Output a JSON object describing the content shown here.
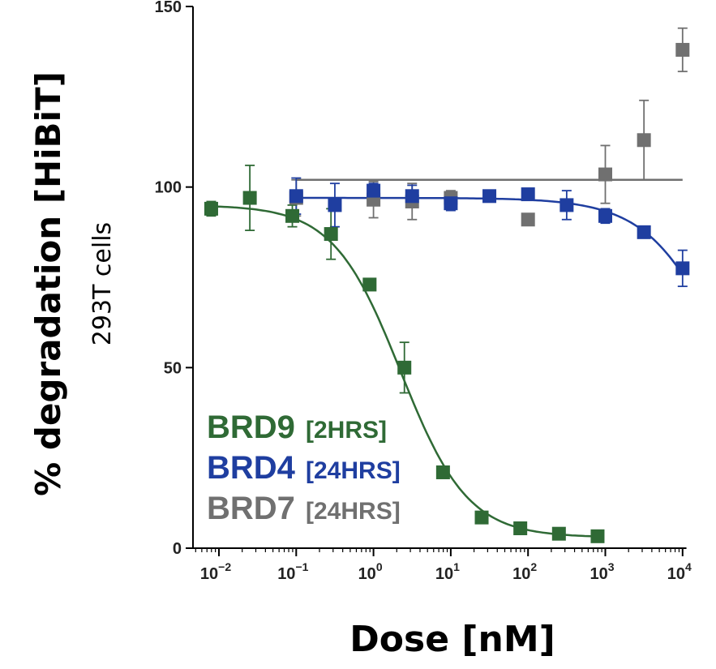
{
  "chart_data": {
    "type": "scatter",
    "xscale": "log",
    "xlabel": "Dose [nM]",
    "ylabel": "% degradation [HiBiT]",
    "ylabel_sub": "293T cells",
    "ylim": [
      0,
      150
    ],
    "xlim_log10": [
      -2.35,
      4.05
    ],
    "yticks": [
      "0",
      "50",
      "100",
      "150"
    ],
    "xticks": [
      {
        "base": "10",
        "exp": "−2",
        "log": -2
      },
      {
        "base": "10",
        "exp": "−1",
        "log": -1
      },
      {
        "base": "10",
        "exp": "0",
        "log": 0
      },
      {
        "base": "10",
        "exp": "1",
        "log": 1
      },
      {
        "base": "10",
        "exp": "2",
        "log": 2
      },
      {
        "base": "10",
        "exp": "3",
        "log": 3
      },
      {
        "base": "10",
        "exp": "4",
        "log": 4
      }
    ],
    "series": [
      {
        "name": "BRD9",
        "time": "[2HRS]",
        "color": "#2f6a35",
        "fit": {
          "type": "sigmoid",
          "top": 95,
          "bottom": 3,
          "logIC50": 0.35,
          "hill": 1.0,
          "log_range": [
            -2.1,
            2.9
          ]
        },
        "points": [
          {
            "log": -2.1,
            "y": 94,
            "err": 2
          },
          {
            "log": -1.6,
            "y": 97,
            "err": 9
          },
          {
            "log": -1.05,
            "y": 92,
            "err": 3
          },
          {
            "log": -0.55,
            "y": 87,
            "err": 7
          },
          {
            "log": -0.05,
            "y": 73,
            "err": 0
          },
          {
            "log": 0.4,
            "y": 50,
            "err": 7
          },
          {
            "log": 0.9,
            "y": 21,
            "err": 0
          },
          {
            "log": 1.4,
            "y": 8.5,
            "err": 0
          },
          {
            "log": 1.9,
            "y": 5.5,
            "err": 0
          },
          {
            "log": 2.4,
            "y": 4,
            "err": 0
          },
          {
            "log": 2.9,
            "y": 3.3,
            "err": 0
          }
        ]
      },
      {
        "name": "BRD4",
        "time": "[24HRS]",
        "color": "#1f3ea0",
        "fit": {
          "type": "sigmoid",
          "top": 97,
          "bottom": 0,
          "logIC50": 4.65,
          "hill": 0.85,
          "log_range": [
            -1.0,
            4.0
          ]
        },
        "points": [
          {
            "log": -1.0,
            "y": 97.5,
            "err": 5
          },
          {
            "log": -0.5,
            "y": 95,
            "err": 6
          },
          {
            "log": 0.0,
            "y": 99,
            "err": 2
          },
          {
            "log": 0.5,
            "y": 97.5,
            "err": 3
          },
          {
            "log": 1.0,
            "y": 95.5,
            "err": 2
          },
          {
            "log": 1.5,
            "y": 97.5,
            "err": 1
          },
          {
            "log": 2.0,
            "y": 98,
            "err": 1
          },
          {
            "log": 2.5,
            "y": 95,
            "err": 4
          },
          {
            "log": 3.0,
            "y": 92,
            "err": 2
          },
          {
            "log": 3.5,
            "y": 87.5,
            "err": 0
          },
          {
            "log": 4.0,
            "y": 77.5,
            "err": 5
          }
        ]
      },
      {
        "name": "BRD7",
        "time": "[24HRS]",
        "color": "#707070",
        "fit": {
          "type": "flat",
          "y": 102,
          "log_range": [
            -1.0,
            4.0
          ]
        },
        "points": [
          {
            "log": -1.0,
            "y": 97,
            "err": 5
          },
          {
            "log": 0.0,
            "y": 96.5,
            "err": 5
          },
          {
            "log": 0.5,
            "y": 96,
            "err": 5
          },
          {
            "log": 1.0,
            "y": 97,
            "err": 2
          },
          {
            "log": 2.0,
            "y": 91,
            "err": 0
          },
          {
            "log": 3.0,
            "y": 103.5,
            "err": 8
          },
          {
            "log": 3.5,
            "y": 113,
            "err": 11
          },
          {
            "log": 4.0,
            "y": 138,
            "err": 6
          }
        ]
      }
    ]
  }
}
